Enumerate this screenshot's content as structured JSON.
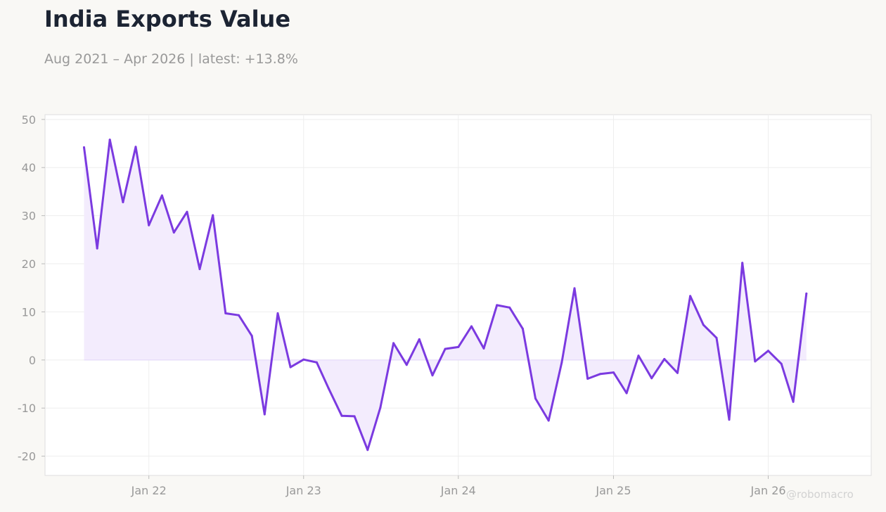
{
  "header": {
    "title": "India Exports Value",
    "subtitle": "Aug 2021 – Apr 2026 | latest: +13.8%",
    "watermark": "@robomacro"
  },
  "colors": {
    "line": "#7b3ae0",
    "area": "#f3ecfd",
    "grid": "#eeeeee",
    "plot_border": "#dedede",
    "tick": "#999999"
  },
  "chart_data": {
    "type": "area",
    "title": "India Exports Value",
    "subtitle": "Aug 2021 – Apr 2026 | latest: +13.8%",
    "xlabel": "",
    "ylabel": "",
    "ylim": [
      -24,
      51
    ],
    "xlim": [
      "2021-05-01",
      "2026-09-01"
    ],
    "yticks": [
      -20,
      -10,
      0,
      10,
      20,
      30,
      40,
      50
    ],
    "xticks": [
      {
        "label": "Jan 22",
        "date": "2022-01-01"
      },
      {
        "label": "Jan 23",
        "date": "2023-01-01"
      },
      {
        "label": "Jan 24",
        "date": "2024-01-01"
      },
      {
        "label": "Jan 25",
        "date": "2025-01-01"
      },
      {
        "label": "Jan 26",
        "date": "2026-01-01"
      }
    ],
    "grid": true,
    "fill_to_zero": true,
    "series": [
      {
        "x": [
          "2021-08",
          "2021-09",
          "2021-10",
          "2021-11",
          "2021-12",
          "2022-01",
          "2022-02",
          "2022-03",
          "2022-04",
          "2022-05",
          "2022-06",
          "2022-07",
          "2022-08",
          "2022-09",
          "2022-10",
          "2022-11",
          "2022-12",
          "2023-01",
          "2023-02",
          "2023-03",
          "2023-04",
          "2023-05",
          "2023-06",
          "2023-07",
          "2023-08",
          "2023-09",
          "2023-10",
          "2023-11",
          "2023-12",
          "2024-01",
          "2024-02",
          "2024-03",
          "2024-04",
          "2024-05",
          "2024-06",
          "2024-07",
          "2024-08",
          "2024-09",
          "2024-10",
          "2024-11",
          "2024-12",
          "2025-01",
          "2025-02",
          "2025-03",
          "2025-04",
          "2025-05",
          "2025-06",
          "2025-07",
          "2025-08",
          "2025-09",
          "2025-10",
          "2025-11",
          "2025-12",
          "2026-01",
          "2026-02",
          "2026-03",
          "2026-04"
        ],
        "values": [
          44.2,
          23.2,
          45.8,
          32.8,
          44.3,
          28.0,
          34.2,
          26.5,
          30.8,
          18.9,
          30.1,
          9.7,
          9.3,
          5.0,
          -11.3,
          9.7,
          -1.5,
          0.1,
          -0.5,
          -5.9,
          -11.6,
          -11.7,
          -18.7,
          -9.9,
          3.5,
          -1.0,
          4.3,
          -3.2,
          2.3,
          2.7,
          7.0,
          2.4,
          11.4,
          10.9,
          6.5,
          -8.0,
          -12.6,
          -0.5,
          14.9,
          -3.9,
          -2.9,
          -2.6,
          -6.9,
          0.9,
          -3.8,
          0.2,
          -2.7,
          13.3,
          7.3,
          4.6,
          -12.4,
          20.2,
          -0.3,
          1.9,
          -0.8,
          -8.7,
          13.8
        ]
      }
    ]
  }
}
